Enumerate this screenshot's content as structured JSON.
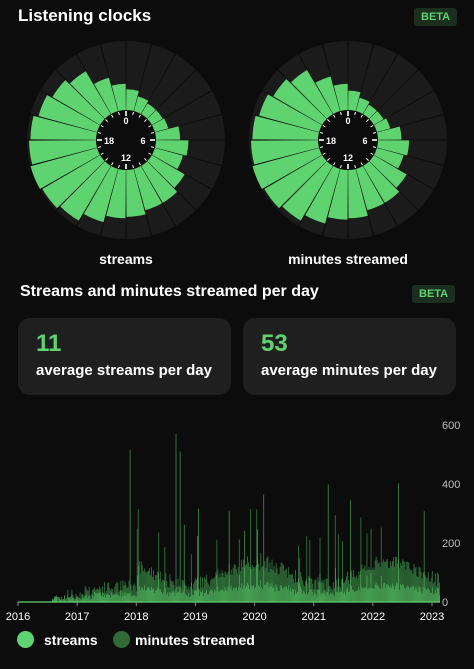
{
  "clocks_section": {
    "title": "Listening clocks",
    "badge": "BETA",
    "dial_labels": [
      "0",
      "6",
      "12",
      "18"
    ],
    "clocks": [
      {
        "label": "streams",
        "values": [
          0.3,
          0.22,
          0.18,
          0.18,
          0.2,
          0.35,
          0.47,
          0.42,
          0.55,
          0.62,
          0.62,
          0.68,
          0.7,
          0.8,
          0.92,
          0.97,
          1.0,
          0.97,
          0.95,
          0.88,
          0.8,
          0.72,
          0.5,
          0.38
        ]
      },
      {
        "label": "minutes streamed",
        "values": [
          0.28,
          0.2,
          0.16,
          0.16,
          0.2,
          0.34,
          0.45,
          0.4,
          0.55,
          0.62,
          0.62,
          0.7,
          0.72,
          0.82,
          0.92,
          0.97,
          1.0,
          0.97,
          0.95,
          0.9,
          0.82,
          0.74,
          0.52,
          0.38
        ]
      }
    ]
  },
  "daily_section": {
    "title": "Streams and minutes streamed per day",
    "badge": "BETA",
    "stats": [
      {
        "value": "11",
        "label": "average streams per day"
      },
      {
        "value": "53",
        "label": "average minutes per day"
      }
    ]
  },
  "chart_data": {
    "type": "bar",
    "x_labels": [
      "2016",
      "2017",
      "2018",
      "2019",
      "2020",
      "2021",
      "2022",
      "2023"
    ],
    "y_ticks": [
      "0",
      "200",
      "400",
      "600"
    ],
    "ylim": [
      0,
      600
    ],
    "series": [
      {
        "name": "streams",
        "color": "#5fd36f"
      },
      {
        "name": "minutes streamed",
        "color": "#2e6b37"
      }
    ],
    "legend": {
      "position": "bottom-left"
    }
  },
  "colors": {
    "accent": "#5fd36f",
    "accent_dark": "#2e6b37",
    "sector_bg": "#1b1b1b",
    "card_bg": "#1f1f1f"
  }
}
